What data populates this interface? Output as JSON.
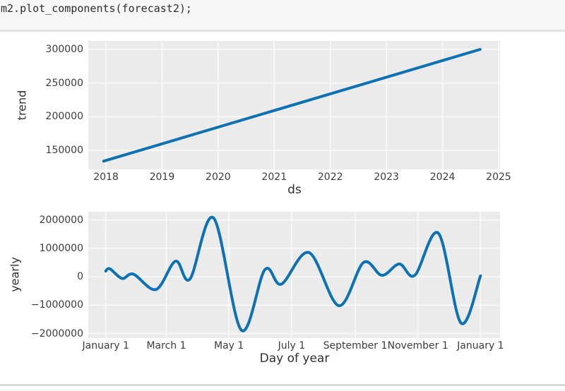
{
  "code_cell": {
    "code": "m2.plot_components(forecast2);"
  },
  "colors": {
    "line": "#0e72b2",
    "plot_bg": "#ebebeb",
    "grid": "#f8f8f8",
    "cell_bg": "#f6f6f6",
    "divider": "#e2e2e2",
    "bottom_divider": "#d9d9d9",
    "tick_text": "#3c3c3c",
    "label_text": "#303030"
  },
  "chart_data": [
    {
      "type": "line",
      "curve": "linear",
      "title": "",
      "xlabel": "ds",
      "ylabel": "trend",
      "grid": true,
      "legend": "none",
      "xlim": [
        2017.685,
        2025.025
      ],
      "ylim": [
        121700,
        312600
      ],
      "xticks": {
        "values": [
          2018,
          2019,
          2020,
          2021,
          2022,
          2023,
          2024,
          2025
        ],
        "labels": [
          "2018",
          "2019",
          "2020",
          "2021",
          "2022",
          "2023",
          "2024",
          "2025"
        ]
      },
      "yticks": {
        "values": [
          150000,
          200000,
          250000,
          300000
        ],
        "labels": [
          "150000",
          "200000",
          "250000",
          "300000"
        ]
      },
      "series": [
        {
          "name": "trend",
          "x": [
            2017.96,
            2024.67
          ],
          "y": [
            134000,
            300000
          ]
        }
      ]
    },
    {
      "type": "line",
      "curve": "smooth",
      "title": "",
      "xlabel": "Day of year",
      "ylabel": "yearly",
      "grid": true,
      "legend": "none",
      "xlim": [
        -17,
        384
      ],
      "ylim": [
        -2160000,
        2290000
      ],
      "xticks": {
        "values": [
          0,
          59,
          120,
          181,
          243,
          304,
          365
        ],
        "labels": [
          "January 1",
          "March 1",
          "May 1",
          "July 1",
          "September 1",
          "November 1",
          "January 1"
        ]
      },
      "yticks": {
        "values": [
          2000000,
          1000000,
          0,
          -1000000,
          -2000000
        ],
        "labels": [
          "2000000",
          "1000000",
          "0",
          "−1000000",
          "−2000000"
        ]
      },
      "series": [
        {
          "name": "yearly",
          "x": [
            0,
            4,
            16,
            27,
            49,
            68,
            82,
            105,
            132,
            155,
            171,
            198,
            227,
            251,
            269,
            286,
            301,
            324,
            346,
            365
          ],
          "y": [
            200000,
            280000,
            -60000,
            90000,
            -450000,
            550000,
            -80000,
            2070000,
            -1880000,
            250000,
            -260000,
            850000,
            -1020000,
            500000,
            50000,
            450000,
            50000,
            1530000,
            -1630000,
            30000
          ]
        }
      ]
    }
  ]
}
